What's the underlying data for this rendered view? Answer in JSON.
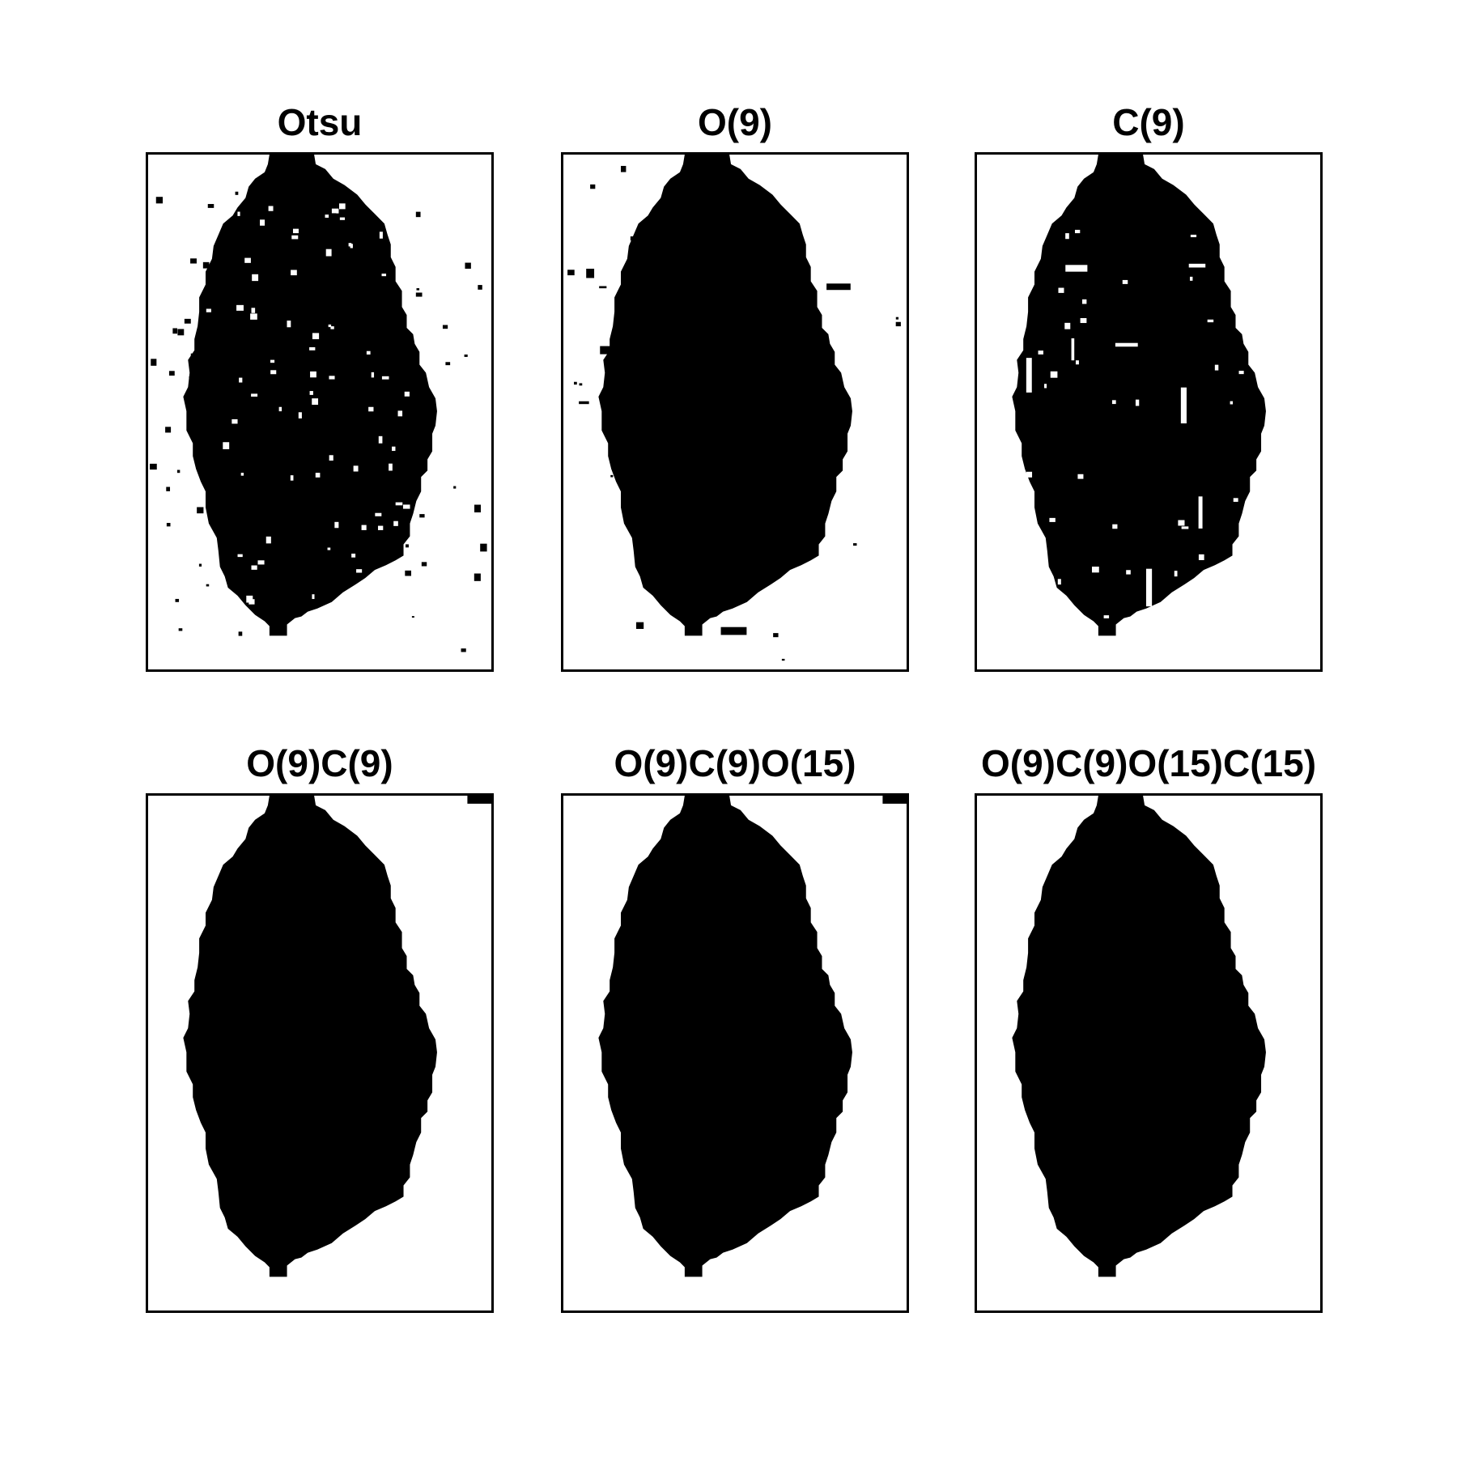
{
  "figure": {
    "background": "#ffffff",
    "foreground": "#000000",
    "panels": [
      {
        "title": "Otsu",
        "noise": "heavy",
        "holes": "many"
      },
      {
        "title": "O(9)",
        "noise": "light",
        "holes": "none"
      },
      {
        "title": "C(9)",
        "noise": "none",
        "holes": "some"
      },
      {
        "title": "O(9)C(9)",
        "noise": "corner",
        "holes": "none"
      },
      {
        "title": "O(9)C(9)O(15)",
        "noise": "corner",
        "holes": "none"
      },
      {
        "title": "O(9)C(9)O(15)C(15)",
        "noise": "none",
        "holes": "none"
      }
    ]
  }
}
